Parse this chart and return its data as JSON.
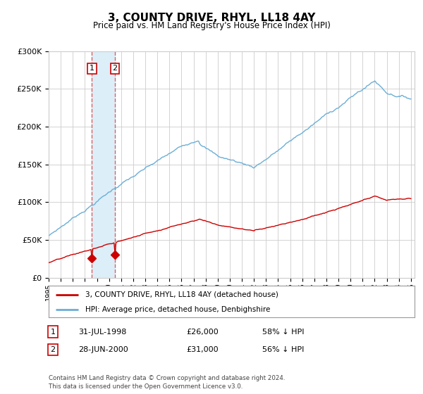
{
  "title": "3, COUNTY DRIVE, RHYL, LL18 4AY",
  "subtitle": "Price paid vs. HM Land Registry's House Price Index (HPI)",
  "legend_line1": "3, COUNTY DRIVE, RHYL, LL18 4AY (detached house)",
  "legend_line2": "HPI: Average price, detached house, Denbighshire",
  "table_rows": [
    {
      "num": "1",
      "date": "31-JUL-1998",
      "price": "£26,000",
      "pct": "58% ↓ HPI"
    },
    {
      "num": "2",
      "date": "28-JUN-2000",
      "price": "£31,000",
      "pct": "56% ↓ HPI"
    }
  ],
  "footnote": "Contains HM Land Registry data © Crown copyright and database right 2024.\nThis data is licensed under the Open Government Licence v3.0.",
  "hpi_color": "#6baed6",
  "price_color": "#cc0000",
  "marker_color": "#cc0000",
  "vline_color": "#e06060",
  "shade_color": "#dceef8",
  "bg_color": "#ffffff",
  "grid_color": "#cccccc",
  "ylim": [
    0,
    300000
  ],
  "yticks": [
    0,
    50000,
    100000,
    150000,
    200000,
    250000,
    300000
  ],
  "sale1_year": 1998.58,
  "sale2_year": 2000.49,
  "sale1_price": 26000,
  "sale2_price": 31000
}
